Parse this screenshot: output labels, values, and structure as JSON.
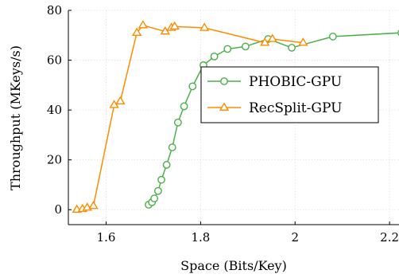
{
  "chart_data": {
    "type": "line",
    "title": "",
    "xlabel": "Space (Bits/Key)",
    "ylabel": "Throughput (MKeys/s)",
    "xlim": [
      1.52,
      2.22
    ],
    "ylim": [
      -6,
      80
    ],
    "x_ticks": [
      1.6,
      1.8,
      2.0,
      2.2
    ],
    "x_tick_labels": [
      "1.6",
      "1.8",
      "2",
      "2.2"
    ],
    "y_ticks": [
      0,
      20,
      40,
      60,
      80
    ],
    "y_tick_labels": [
      "0",
      "20",
      "40",
      "60",
      "80"
    ],
    "grid": true,
    "legend_position": "right",
    "series": [
      {
        "name": "PHOBIC-GPU",
        "color": "#4daf4a",
        "marker": "circle",
        "points": [
          [
            1.69,
            2
          ],
          [
            1.697,
            3
          ],
          [
            1.702,
            4.5
          ],
          [
            1.71,
            7.5
          ],
          [
            1.717,
            12
          ],
          [
            1.728,
            18
          ],
          [
            1.74,
            25
          ],
          [
            1.752,
            35
          ],
          [
            1.765,
            41.5
          ],
          [
            1.783,
            49.5
          ],
          [
            1.806,
            58
          ],
          [
            1.829,
            61.5
          ],
          [
            1.857,
            64.5
          ],
          [
            1.895,
            65.5
          ],
          [
            1.943,
            68.5
          ],
          [
            1.993,
            65
          ],
          [
            2.08,
            69.5
          ],
          [
            2.225,
            71
          ]
        ]
      },
      {
        "name": "RecSplit-GPU",
        "color": "#ff8c00",
        "marker": "triangle",
        "points": [
          [
            1.538,
            0
          ],
          [
            1.55,
            0.3
          ],
          [
            1.56,
            0.8
          ],
          [
            1.573,
            1.5
          ],
          [
            1.617,
            42
          ],
          [
            1.63,
            43.5
          ],
          [
            1.665,
            71
          ],
          [
            1.678,
            74
          ],
          [
            1.725,
            71.5
          ],
          [
            1.738,
            73
          ],
          [
            1.745,
            73.5
          ],
          [
            1.808,
            73
          ],
          [
            1.936,
            67
          ],
          [
            1.952,
            68.5
          ],
          [
            2.017,
            67
          ]
        ]
      }
    ]
  }
}
